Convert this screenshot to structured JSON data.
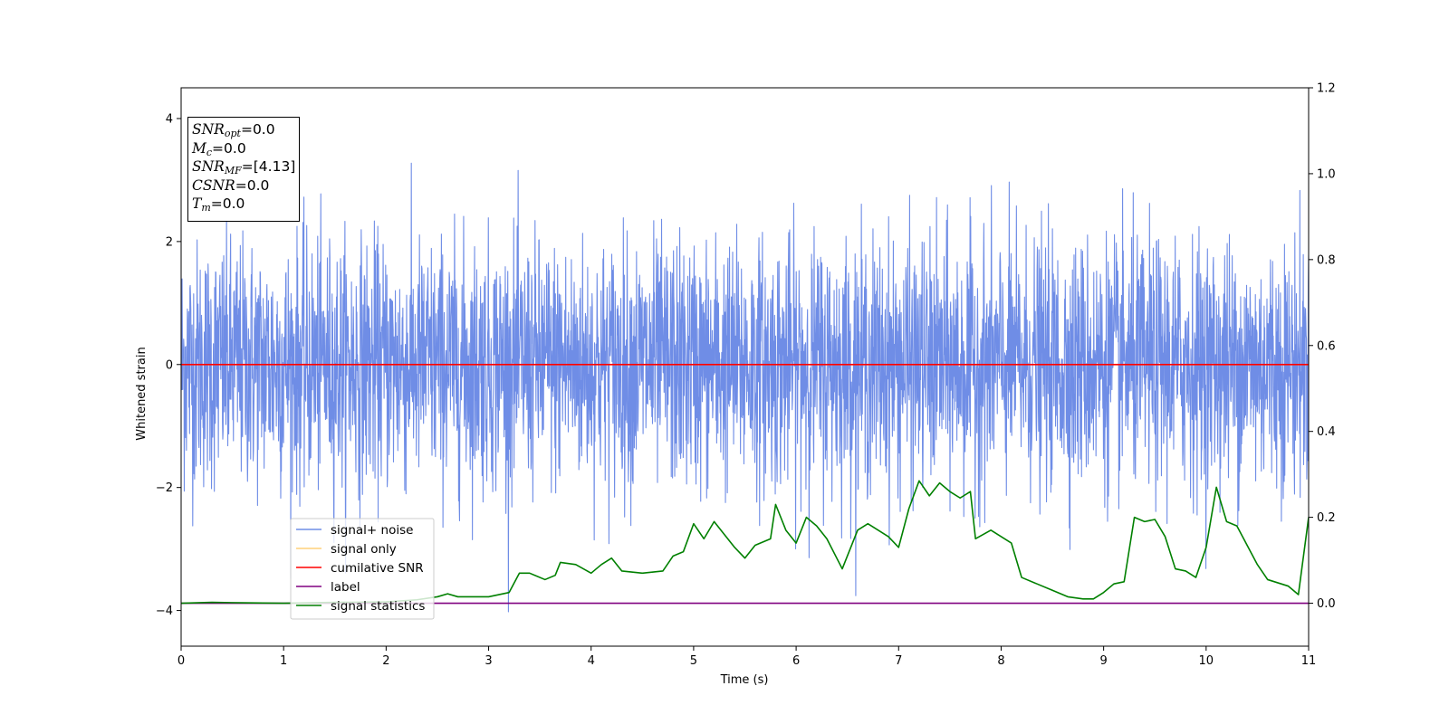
{
  "info_box": {
    "rows": [
      {
        "sym": "SNR",
        "sub": "opt",
        "value": "=0.0"
      },
      {
        "sym": "M",
        "sub": "c",
        "value": "=0.0"
      },
      {
        "sym": "SNR",
        "sub": "MF",
        "value": "=[4.13]"
      },
      {
        "sym": "CSNR",
        "sub": "",
        "value": "=0.0"
      },
      {
        "sym": "T",
        "sub": "m",
        "value": "=0.0"
      }
    ]
  },
  "chart_data": {
    "type": "line",
    "title": "",
    "xlabel": "Time (s)",
    "ylabel": "Whitened strain",
    "xlim": [
      0,
      11
    ],
    "ylim": [
      -4.58,
      4.5
    ],
    "y2lim": [
      -0.1,
      1.2
    ],
    "xticks": [
      "0",
      "1",
      "2",
      "3",
      "4",
      "5",
      "6",
      "7",
      "8",
      "9",
      "10",
      "11"
    ],
    "yticks": [
      "−4",
      "−2",
      "0",
      "2",
      "4"
    ],
    "y2ticks": [
      "0.0",
      "0.2",
      "0.4",
      "0.6",
      "0.8",
      "1.0",
      "1.2"
    ],
    "grid": false,
    "legend_position": "lower-left",
    "series": [
      {
        "name": "signal+ noise",
        "color": "#6f8de6",
        "axis": "left",
        "kind": "noise",
        "std": 1.0,
        "x_range": [
          0,
          11
        ]
      },
      {
        "name": "signal only",
        "color": "#ffd07a",
        "axis": "left",
        "x": [
          0,
          11
        ],
        "y": [
          0,
          0
        ]
      },
      {
        "name": "cumilative SNR",
        "color": "#ff0000",
        "axis": "left",
        "x": [
          0,
          11
        ],
        "y": [
          0,
          0
        ]
      },
      {
        "name": "label",
        "color": "#800080",
        "axis": "right",
        "x": [
          0,
          11
        ],
        "y": [
          0,
          0
        ]
      },
      {
        "name": "signal statistics",
        "color": "#008000",
        "axis": "right",
        "x": [
          0,
          0.3,
          0.6,
          1.0,
          1.5,
          2.0,
          2.3,
          2.5,
          2.6,
          2.7,
          3.0,
          3.2,
          3.3,
          3.4,
          3.55,
          3.65,
          3.7,
          3.85,
          4.0,
          4.1,
          4.2,
          4.3,
          4.5,
          4.7,
          4.8,
          4.9,
          5.0,
          5.1,
          5.2,
          5.3,
          5.4,
          5.5,
          5.6,
          5.75,
          5.8,
          5.9,
          6.0,
          6.1,
          6.2,
          6.3,
          6.45,
          6.6,
          6.7,
          6.8,
          6.9,
          7.0,
          7.1,
          7.2,
          7.3,
          7.4,
          7.5,
          7.6,
          7.7,
          7.75,
          7.9,
          8.1,
          8.2,
          8.5,
          8.65,
          8.8,
          8.9,
          9.0,
          9.1,
          9.2,
          9.3,
          9.4,
          9.5,
          9.6,
          9.7,
          9.8,
          9.9,
          10.0,
          10.1,
          10.2,
          10.3,
          10.5,
          10.6,
          10.8,
          10.9,
          11.0
        ],
        "y": [
          0.0,
          0.002,
          0.001,
          0.0,
          0.002,
          0.003,
          0.008,
          0.015,
          0.022,
          0.015,
          0.015,
          0.025,
          0.07,
          0.07,
          0.055,
          0.065,
          0.095,
          0.09,
          0.07,
          0.09,
          0.105,
          0.075,
          0.07,
          0.075,
          0.11,
          0.12,
          0.185,
          0.15,
          0.19,
          0.16,
          0.13,
          0.105,
          0.135,
          0.15,
          0.23,
          0.17,
          0.14,
          0.2,
          0.18,
          0.15,
          0.08,
          0.17,
          0.185,
          0.17,
          0.155,
          0.13,
          0.22,
          0.285,
          0.25,
          0.28,
          0.26,
          0.245,
          0.26,
          0.15,
          0.17,
          0.14,
          0.06,
          0.03,
          0.015,
          0.01,
          0.01,
          0.025,
          0.045,
          0.05,
          0.2,
          0.19,
          0.195,
          0.155,
          0.08,
          0.075,
          0.06,
          0.13,
          0.27,
          0.19,
          0.18,
          0.09,
          0.055,
          0.04,
          0.02,
          0.2
        ]
      }
    ]
  }
}
